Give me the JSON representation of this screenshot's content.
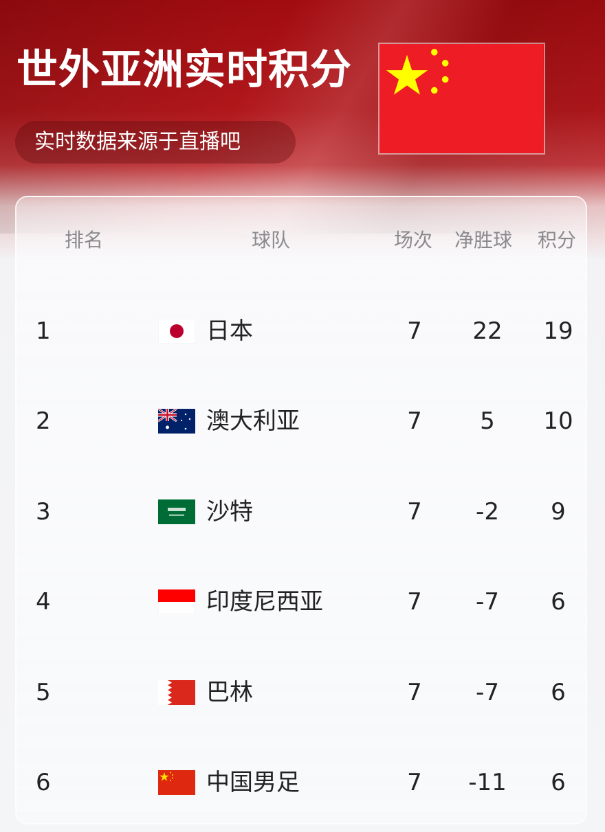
{
  "header": {
    "title": "世外亚洲实时积分",
    "subtitle": "实时数据来源于直播吧",
    "flag_icon": "china-flag-icon"
  },
  "table": {
    "columns": {
      "rank": "排名",
      "team": "球队",
      "matches": "场次",
      "goal_diff": "净胜球",
      "points": "积分"
    },
    "rows": [
      {
        "rank": "1",
        "flag": "japan",
        "team": "日本",
        "matches": "7",
        "goal_diff": "22",
        "points": "19"
      },
      {
        "rank": "2",
        "flag": "australia",
        "team": "澳大利亚",
        "matches": "7",
        "goal_diff": "5",
        "points": "10"
      },
      {
        "rank": "3",
        "flag": "saudi",
        "team": "沙特",
        "matches": "7",
        "goal_diff": "-2",
        "points": "9"
      },
      {
        "rank": "4",
        "flag": "indonesia",
        "team": "印度尼西亚",
        "matches": "7",
        "goal_diff": "-7",
        "points": "6"
      },
      {
        "rank": "5",
        "flag": "bahrain",
        "team": "巴林",
        "matches": "7",
        "goal_diff": "-7",
        "points": "6"
      },
      {
        "rank": "6",
        "flag": "china",
        "team": "中国男足",
        "matches": "7",
        "goal_diff": "-11",
        "points": "6"
      }
    ]
  },
  "colors": {
    "brand_red": "#b0171b",
    "flag_red": "#ee1c25",
    "flag_yellow": "#ffff00"
  }
}
